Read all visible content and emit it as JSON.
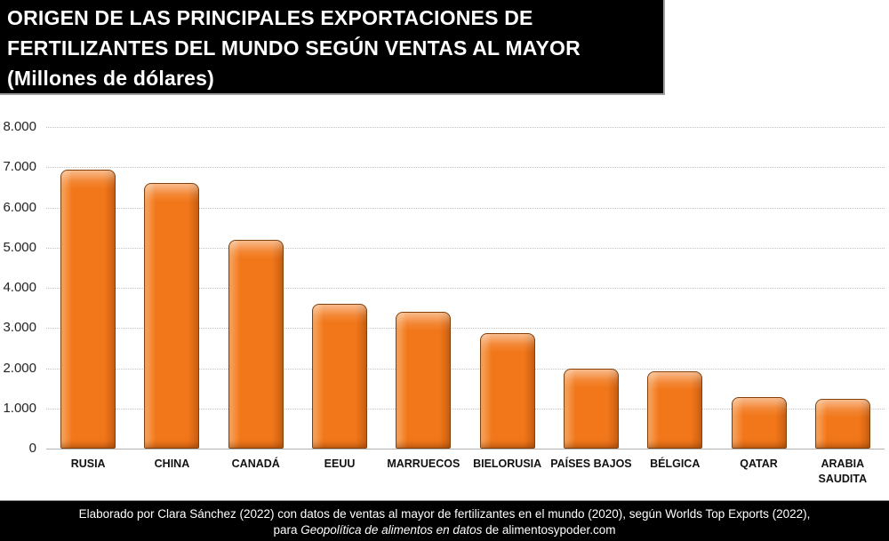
{
  "header": {
    "title_line1": "ORIGEN DE LAS PRINCIPALES EXPORTACIONES DE",
    "title_line2": "FERTILIZANTES DEL MUNDO SEGÚN VENTAS AL MAYOR",
    "title_line3": "(Millones de dólares)"
  },
  "chart_data": {
    "type": "bar",
    "title": "ORIGEN DE LAS PRINCIPALES EXPORTACIONES DE FERTILIZANTES DEL MUNDO SEGÚN VENTAS AL MAYOR",
    "units_label": "Millones de dólares",
    "categories": [
      "RUSIA",
      "CHINA",
      "CANADÁ",
      "EEUU",
      "MARRUECOS",
      "BIELORUSIA",
      "PAÍSES BAJOS",
      "BÉLGICA",
      "QATAR",
      "ARABIA SAUDITA"
    ],
    "values": [
      6950,
      6600,
      5200,
      3600,
      3400,
      2880,
      2000,
      1920,
      1290,
      1230
    ],
    "xlabel": "",
    "ylabel": "",
    "ylim": [
      0,
      8000
    ],
    "ytick_step": 1000,
    "ytick_labels": [
      "0",
      "1.000",
      "2.000",
      "3.000",
      "4.000",
      "5.000",
      "6.000",
      "7.000",
      "8.000"
    ],
    "grid": "horizontal-dotted",
    "legend": "none",
    "bar_face_color": "#F2771A",
    "bar_highlight_color": "#F99C43",
    "bar_border_color": "#82400C",
    "gridline_color": "#C3C3C3",
    "title_bg_color": "#000000",
    "title_text_color": "#FFFFFF"
  },
  "footer": {
    "line1": "Elaborado por Clara Sánchez (2022) con datos de ventas al mayor de fertilizantes en el mundo (2020), según Worlds Top Exports (2022),",
    "line2_prefix": "para ",
    "line2_italic": "Geopolítica de alimentos en datos",
    "line2_suffix": " de alimentosypoder.com"
  }
}
